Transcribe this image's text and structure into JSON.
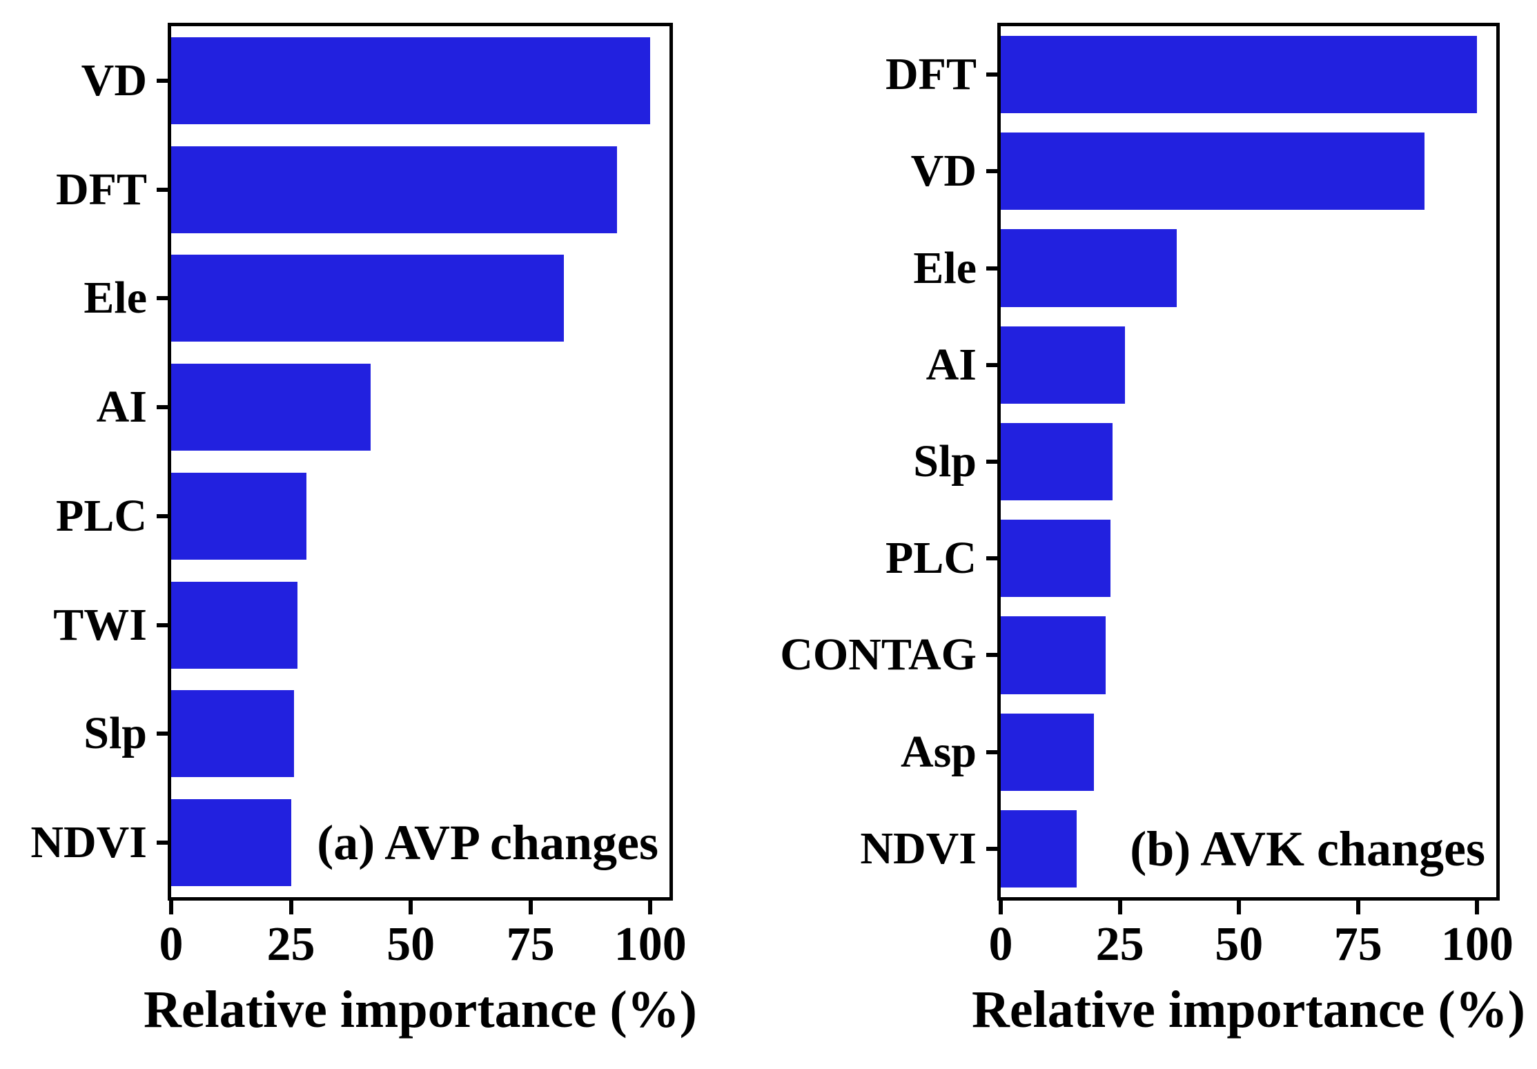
{
  "figure": {
    "background": "#ffffff",
    "bar_color": "#2221DF",
    "axis_color": "#000000",
    "text_color": "#000000"
  },
  "chart_data": [
    {
      "type": "bar",
      "orientation": "horizontal",
      "title": "(a) AVP changes",
      "categories": [
        "VD",
        "DFT",
        "Ele",
        "AI",
        "PLC",
        "TWI",
        "Slp",
        "NDVI"
      ],
      "values": [
        100,
        93,
        82,
        41.7,
        28.3,
        26.3,
        25.7,
        25
      ],
      "xlabel": "Relative importance (%)",
      "xticks": [
        0,
        25,
        50,
        75,
        100
      ],
      "xtick_labels": [
        "0",
        "25",
        "50",
        "75",
        "100"
      ],
      "xlim": [
        0,
        104
      ],
      "grid": false,
      "legend": null
    },
    {
      "type": "bar",
      "orientation": "horizontal",
      "title": "(b) AVK changes",
      "categories": [
        "DFT",
        "VD",
        "Ele",
        "AI",
        "Slp",
        "PLC",
        "CONTAG",
        "Asp",
        "NDVI"
      ],
      "values": [
        100,
        89,
        37,
        26,
        23.5,
        23,
        22,
        19.5,
        16
      ],
      "xlabel": "Relative importance (%)",
      "xticks": [
        0,
        25,
        50,
        75,
        100
      ],
      "xtick_labels": [
        "0",
        "25",
        "50",
        "75",
        "100"
      ],
      "xlim": [
        0,
        104
      ],
      "grid": false,
      "legend": null
    }
  ]
}
